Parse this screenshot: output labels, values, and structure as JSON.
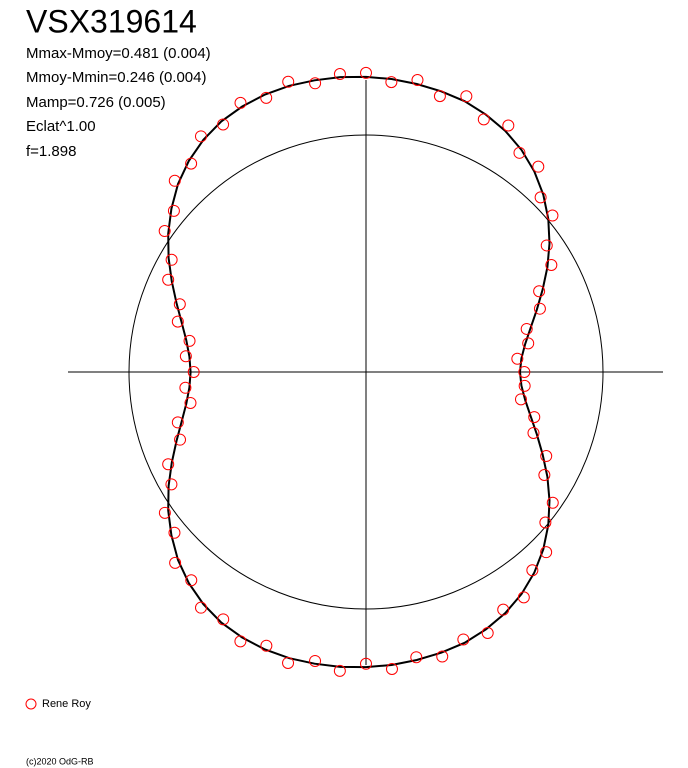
{
  "chart_data": {
    "type": "polar",
    "title": "VSX319614",
    "stats": [
      "Mmax-Mmoy=0.481 (0.004)",
      "Mmoy-Mmin=0.246 (0.004)",
      "Mamp=0.726 (0.005)",
      "Eclat^1.00",
      "f=1.898"
    ],
    "footer": "(c)2020 OdG-RB",
    "reference_circle": 1,
    "x": [
      0,
      5,
      10,
      15,
      20,
      25,
      30,
      35,
      40,
      45,
      50,
      55,
      60,
      65,
      70,
      75,
      80,
      85,
      90,
      95,
      100,
      105,
      110,
      115,
      120,
      125,
      130,
      135,
      140,
      145,
      150,
      155,
      160,
      165,
      170,
      175,
      180,
      185,
      190,
      195,
      200,
      205,
      210,
      215,
      220,
      225,
      230,
      235,
      240,
      245,
      250,
      255,
      260,
      265,
      270,
      275,
      280,
      285,
      290,
      295,
      300,
      305,
      310,
      315,
      320,
      325,
      330,
      335,
      340,
      345,
      350,
      355
    ],
    "curve": {
      "color": "#000000",
      "values": [
        1.245,
        1.241,
        1.234,
        1.226,
        1.216,
        1.198,
        1.175,
        1.144,
        1.105,
        1.058,
        1.004,
        0.945,
        0.884,
        0.822,
        0.767,
        0.719,
        0.682,
        0.658,
        0.65,
        0.658,
        0.682,
        0.719,
        0.767,
        0.822,
        0.884,
        0.945,
        1.004,
        1.058,
        1.105,
        1.144,
        1.175,
        1.198,
        1.216,
        1.226,
        1.234,
        1.241,
        1.245,
        1.249,
        1.25,
        1.25,
        1.246,
        1.236,
        1.221,
        1.196,
        1.163,
        1.122,
        1.072,
        1.019,
        0.962,
        0.904,
        0.851,
        0.805,
        0.77,
        0.748,
        0.74,
        0.748,
        0.77,
        0.805,
        0.851,
        0.904,
        0.962,
        1.019,
        1.072,
        1.122,
        1.163,
        1.196,
        1.221,
        1.236,
        1.246,
        1.25,
        1.25,
        1.249
      ]
    },
    "series": [
      {
        "name": "Rene Roy",
        "color": "#ff0000",
        "values": [
          1.262,
          1.228,
          1.251,
          1.205,
          1.238,
          1.176,
          1.201,
          1.129,
          1.131,
          1.042,
          1.027,
          0.931,
          0.903,
          0.806,
          0.781,
          0.702,
          0.695,
          0.641,
          0.668,
          0.672,
          0.664,
          0.735,
          0.752,
          0.839,
          0.869,
          0.962,
          0.988,
          1.075,
          1.092,
          1.161,
          1.158,
          1.215,
          1.201,
          1.243,
          1.222,
          1.258,
          1.231,
          1.266,
          1.238,
          1.271,
          1.229,
          1.254,
          1.205,
          1.214,
          1.147,
          1.139,
          1.055,
          1.036,
          0.948,
          0.921,
          0.835,
          0.822,
          0.752,
          0.765,
          0.727,
          0.763,
          0.756,
          0.822,
          0.836,
          0.921,
          0.947,
          1.037,
          1.058,
          1.141,
          1.148,
          1.214,
          1.206,
          1.253,
          1.231,
          1.268,
          1.237,
          1.262
        ]
      }
    ]
  }
}
